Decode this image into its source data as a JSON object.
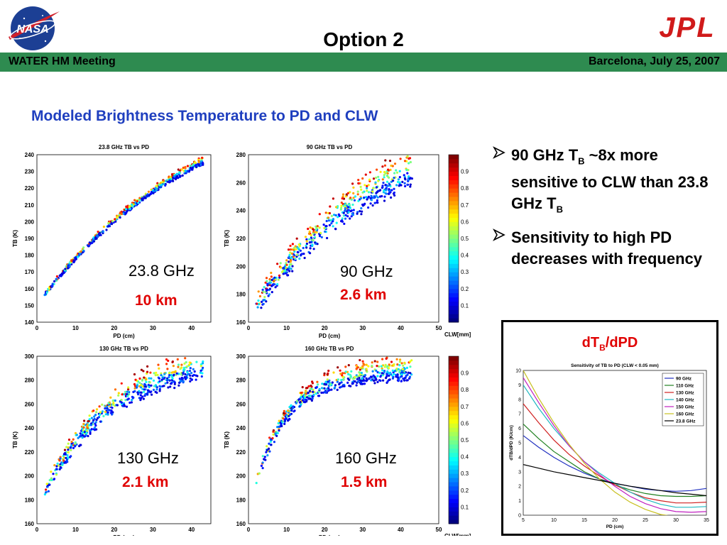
{
  "header": {
    "title": "Option 2",
    "meeting": "WATER HM Meeting",
    "location_date": "Barcelona, July 25, 2007",
    "left_logo_text": "NASA",
    "right_logo_text": "JPL"
  },
  "subtitle": "Modeled Brightness Temperature to PD and CLW",
  "plots": [
    {
      "title": "23.8 GHz TB vs PD",
      "freq_label": "23.8 GHz",
      "km_label": "10 km",
      "ylabel": "TB (K)",
      "xlabel": "PD (cm)",
      "yticks": [
        "140",
        "150",
        "160",
        "170",
        "180",
        "190",
        "200",
        "210",
        "220",
        "230",
        "240"
      ],
      "xticks": [
        "0",
        "10",
        "20",
        "30",
        "40"
      ]
    },
    {
      "title": "90 GHz TB vs PD",
      "freq_label": "90 GHz",
      "km_label": "2.6 km",
      "ylabel": "TB (K)",
      "xlabel": "PD (cm)",
      "yticks": [
        "160",
        "180",
        "200",
        "220",
        "240",
        "260",
        "280"
      ],
      "xticks": [
        "0",
        "10",
        "20",
        "30",
        "40",
        "50"
      ]
    },
    {
      "title": "130 GHz TB vs PD",
      "freq_label": "130 GHz",
      "km_label": "2.1 km",
      "ylabel": "TB (K)",
      "xlabel": "PD (cm)",
      "yticks": [
        "160",
        "180",
        "200",
        "220",
        "240",
        "260",
        "280",
        "300"
      ],
      "xticks": [
        "0",
        "10",
        "20",
        "30",
        "40"
      ]
    },
    {
      "title": "160 GHz TB vs PD",
      "freq_label": "160 GHz",
      "km_label": "1.5 km",
      "ylabel": "TB (K)",
      "xlabel": "PD (cm)",
      "yticks": [
        "160",
        "180",
        "200",
        "220",
        "240",
        "260",
        "280",
        "300"
      ],
      "xticks": [
        "0",
        "10",
        "20",
        "30",
        "40",
        "50"
      ]
    }
  ],
  "colorbar": {
    "ticks": [
      "0.1",
      "0.2",
      "0.3",
      "0.4",
      "0.5",
      "0.6",
      "0.7",
      "0.8",
      "0.9"
    ],
    "label_top": "CLW[mm]",
    "label_bottom": "CLW[mm]"
  },
  "bullets": [
    {
      "parts": [
        " 90 GHz T",
        "B",
        " ~8x more sensitive to CLW than 23.8 GHz T",
        "B"
      ]
    },
    {
      "parts": [
        " Sensitivity to high PD decreases with frequency"
      ]
    }
  ],
  "sensitivity": {
    "heading_main": "dT",
    "heading_sub": "B",
    "heading_tail": "/dPD"
  },
  "chart_data": {
    "type": "line",
    "title": "Sensitivity of TB to PD (CLW < 0.05 mm)",
    "xlabel": "PD (cm)",
    "ylabel": "dTB/dPD (K/cm)",
    "xlim": [
      5,
      35
    ],
    "ylim": [
      0,
      10
    ],
    "xticks": [
      5,
      10,
      15,
      20,
      25,
      30,
      35
    ],
    "yticks": [
      0,
      1,
      2,
      3,
      4,
      5,
      6,
      7,
      8,
      9,
      10
    ],
    "legend_position": "top-right",
    "x": [
      5,
      7.5,
      10,
      12.5,
      15,
      17.5,
      20,
      22.5,
      25,
      27.5,
      30,
      32.5,
      35
    ],
    "series": [
      {
        "name": "90 GHz",
        "color": "#2030c0",
        "values": [
          5.5,
          4.7,
          4.0,
          3.4,
          2.9,
          2.5,
          2.2,
          2.0,
          1.8,
          1.7,
          1.65,
          1.7,
          1.85
        ]
      },
      {
        "name": "110 GHz",
        "color": "#208020",
        "values": [
          6.3,
          5.3,
          4.4,
          3.7,
          3.0,
          2.5,
          2.1,
          1.75,
          1.5,
          1.35,
          1.3,
          1.3,
          1.35
        ]
      },
      {
        "name": "130 GHz",
        "color": "#d02020",
        "values": [
          7.7,
          6.4,
          5.2,
          4.2,
          3.4,
          2.7,
          2.1,
          1.6,
          1.2,
          1.0,
          0.85,
          0.85,
          0.9
        ]
      },
      {
        "name": "140 GHz",
        "color": "#20b8c0",
        "values": [
          9.0,
          7.4,
          6.0,
          4.8,
          3.7,
          2.9,
          2.2,
          1.6,
          1.1,
          0.75,
          0.55,
          0.55,
          0.6
        ]
      },
      {
        "name": "150 GHz",
        "color": "#c020c0",
        "values": [
          9.5,
          7.8,
          6.2,
          4.8,
          3.7,
          2.8,
          2.0,
          1.3,
          0.8,
          0.45,
          0.25,
          0.2,
          0.25
        ]
      },
      {
        "name": "160 GHz",
        "color": "#c8c020",
        "values": [
          10.0,
          8.1,
          6.4,
          4.9,
          3.6,
          2.5,
          1.6,
          0.9,
          0.4,
          0.05,
          -0.1,
          -0.1,
          -0.05
        ]
      },
      {
        "name": "23.8 GHz",
        "color": "#000000",
        "values": [
          3.5,
          3.25,
          3.0,
          2.8,
          2.6,
          2.4,
          2.2,
          2.0,
          1.85,
          1.7,
          1.55,
          1.45,
          1.35
        ]
      }
    ]
  }
}
